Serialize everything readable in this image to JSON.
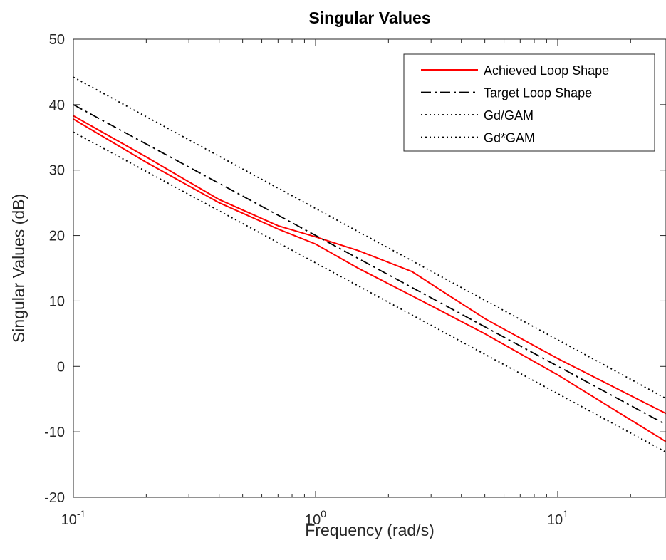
{
  "chart_data": {
    "type": "line",
    "title": "Singular Values",
    "xlabel": "Frequency (rad/s)",
    "ylabel": "Singular Values (dB)",
    "xscale": "log",
    "xlim": [
      0.1,
      28
    ],
    "ylim": [
      -20,
      50
    ],
    "grid": false,
    "legend_position": "top-right",
    "x_ticks": [
      {
        "value": 0.1,
        "base": "10",
        "exp": "-1"
      },
      {
        "value": 1,
        "base": "10",
        "exp": "0"
      },
      {
        "value": 10,
        "base": "10",
        "exp": "1"
      }
    ],
    "y_ticks": [
      -20,
      -10,
      0,
      10,
      20,
      30,
      40,
      50
    ],
    "legend": [
      "Achieved Loop Shape",
      "Target Loop Shape",
      "Gd/GAM",
      "Gd*GAM"
    ],
    "series": [
      {
        "name": "Achieved Loop Shape",
        "color": "#ff0000",
        "style": "solid",
        "x": [
          0.1,
          0.2,
          0.4,
          0.7,
          1.0,
          1.5,
          2.5,
          5,
          10,
          28
        ],
        "y": [
          38.3,
          32.0,
          25.5,
          21.5,
          19.8,
          17.7,
          14.5,
          7.3,
          1.2,
          -7.2
        ]
      },
      {
        "name": "",
        "color": "#ff0000",
        "style": "solid",
        "x": [
          0.1,
          0.2,
          0.4,
          0.7,
          1.0,
          1.5,
          2.5,
          5,
          10,
          28
        ],
        "y": [
          37.8,
          31.2,
          25.0,
          21.0,
          18.7,
          15.0,
          10.8,
          5.0,
          -1.3,
          -11.5
        ]
      },
      {
        "name": "Target Loop Shape",
        "color": "#000000",
        "style": "dashdot",
        "x": [
          0.1,
          28
        ],
        "y": [
          40.0,
          -8.9
        ]
      },
      {
        "name": "Gd/GAM",
        "color": "#000000",
        "style": "dotted",
        "x": [
          0.1,
          28
        ],
        "y": [
          44.2,
          -4.9
        ]
      },
      {
        "name": "Gd*GAM",
        "color": "#000000",
        "style": "dotted",
        "x": [
          0.1,
          28
        ],
        "y": [
          35.8,
          -13.1
        ]
      }
    ]
  }
}
